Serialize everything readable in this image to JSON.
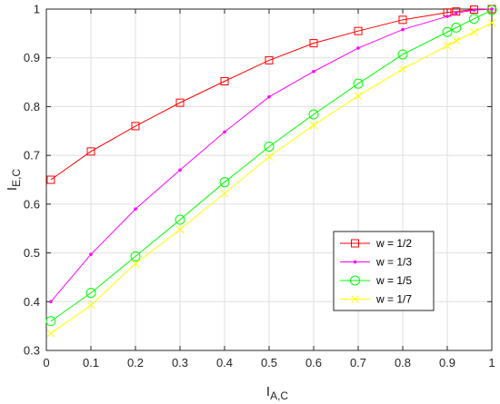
{
  "chart_data": {
    "type": "line",
    "title": "",
    "xlabel_main": "I",
    "xlabel_sub": "A,C",
    "ylabel_main": "I",
    "ylabel_sub": "E,C",
    "xlim": [
      0,
      1
    ],
    "ylim": [
      0.3,
      1
    ],
    "xticks": [
      0,
      0.1,
      0.2,
      0.3,
      0.4,
      0.5,
      0.6,
      0.7,
      0.8,
      0.9,
      1
    ],
    "xtick_labels": [
      "0",
      "0.1",
      "0.2",
      "0.3",
      "0.4",
      "0.5",
      "0.6",
      "0.7",
      "0.8",
      "0.9",
      "1"
    ],
    "yticks": [
      0.3,
      0.4,
      0.5,
      0.6,
      0.7,
      0.8,
      0.9,
      1
    ],
    "ytick_labels": [
      "0.3",
      "0.4",
      "0.5",
      "0.6",
      "0.7",
      "0.8",
      "0.9",
      "1"
    ],
    "grid": true,
    "legend_position": "lower-right",
    "series": [
      {
        "name": "w = 1/2",
        "color": "#ff0000",
        "marker": "square",
        "x": [
          0.01,
          0.1,
          0.2,
          0.3,
          0.4,
          0.5,
          0.6,
          0.7,
          0.8,
          0.9,
          0.92,
          0.96,
          1.0
        ],
        "y": [
          0.65,
          0.708,
          0.76,
          0.808,
          0.852,
          0.895,
          0.93,
          0.955,
          0.978,
          0.993,
          0.995,
          0.999,
          1.0
        ]
      },
      {
        "name": "w = 1/3",
        "color": "#ff00ff",
        "marker": "point",
        "x": [
          0.01,
          0.1,
          0.2,
          0.3,
          0.4,
          0.5,
          0.6,
          0.7,
          0.8,
          0.9,
          0.92,
          0.96,
          1.0
        ],
        "y": [
          0.4,
          0.497,
          0.59,
          0.67,
          0.748,
          0.82,
          0.872,
          0.92,
          0.958,
          0.985,
          0.992,
          0.998,
          1.0
        ]
      },
      {
        "name": "w = 1/5",
        "color": "#00ff00",
        "marker": "circle",
        "x": [
          0.01,
          0.1,
          0.2,
          0.3,
          0.4,
          0.5,
          0.6,
          0.7,
          0.8,
          0.9,
          0.92,
          0.96,
          1.0
        ],
        "y": [
          0.36,
          0.418,
          0.493,
          0.568,
          0.645,
          0.718,
          0.784,
          0.847,
          0.907,
          0.953,
          0.962,
          0.98,
          0.998
        ]
      },
      {
        "name": "w = 1/7",
        "color": "#ffff00",
        "marker": "cross",
        "x": [
          0.01,
          0.1,
          0.2,
          0.3,
          0.4,
          0.5,
          0.6,
          0.7,
          0.8,
          0.9,
          0.92,
          0.96,
          1.0
        ],
        "y": [
          0.335,
          0.393,
          0.478,
          0.548,
          0.622,
          0.697,
          0.762,
          0.822,
          0.877,
          0.925,
          0.935,
          0.953,
          0.972
        ]
      }
    ]
  }
}
